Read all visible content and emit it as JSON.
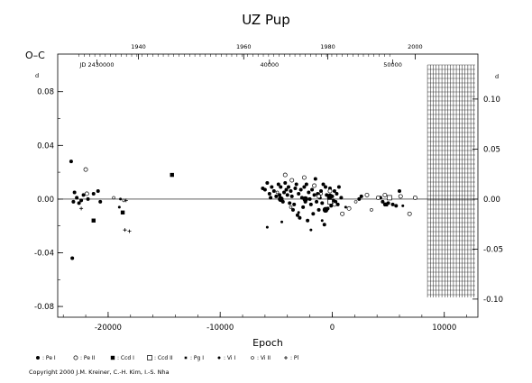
{
  "chart_data": {
    "type": "scatter",
    "title": "UZ Pup",
    "xlabel": "Epoch",
    "ylabel": "O–C",
    "y_unit_mark": "d",
    "xlim": [
      -24500,
      13000
    ],
    "ylim": [
      -0.088,
      0.108
    ],
    "x_ticks": [
      -20000,
      -10000,
      0,
      10000
    ],
    "x_tick_labels": [
      "-20000",
      "-10000",
      "0",
      "10000"
    ],
    "y_ticks_left": [
      -0.08,
      -0.04,
      0.0,
      0.04,
      0.08
    ],
    "y_tick_labels_left": [
      "-0.08",
      "-0.04",
      "0.00",
      "0.04",
      "0.08"
    ],
    "y_ticks_right": [
      -0.1,
      -0.05,
      0.0,
      0.05,
      0.1
    ],
    "y_tick_labels_right": [
      "-0.10",
      "-0.05",
      "0.00",
      "0.05",
      "0.10"
    ],
    "top_axis_years": [
      {
        "label": "1940",
        "epoch": -17300
      },
      {
        "label": "1960",
        "epoch": -7900
      },
      {
        "label": "1980",
        "epoch": -400
      },
      {
        "label": "2000",
        "epoch": 7400
      }
    ],
    "top_axis_jd": [
      {
        "label": "JD 2430000",
        "epoch": -21000
      },
      {
        "label": "40000",
        "epoch": -5600
      },
      {
        "label": "50000",
        "epoch": 5400
      }
    ],
    "zero_line": 0.0,
    "future_shade_from_epoch": 8500,
    "grid": false,
    "legend": [
      {
        "label": ": Pe I",
        "symbol": "filled-circle"
      },
      {
        "label": ": Pe II",
        "symbol": "open-circle"
      },
      {
        "label": ": Ccd I",
        "symbol": "filled-square"
      },
      {
        "label": ": Ccd II",
        "symbol": "open-square"
      },
      {
        "label": ": Pg I",
        "symbol": "small-filled-square"
      },
      {
        "label": ": Vi I",
        "symbol": "small-filled-circle"
      },
      {
        "label": ": Vi II",
        "symbol": "small-open-circle"
      },
      {
        "label": ": Pl",
        "symbol": "plus"
      }
    ],
    "series": [
      {
        "name": "Pe I",
        "symbol": "filled-circle",
        "points": [
          [
            -23300,
            0.028
          ],
          [
            -23200,
            -0.044
          ],
          [
            -23100,
            -0.002
          ],
          [
            -23000,
            0.005
          ],
          [
            -22800,
            0.001
          ],
          [
            -22600,
            -0.003
          ],
          [
            -22400,
            -0.001
          ],
          [
            -22200,
            0.003
          ],
          [
            -21800,
            0.0
          ],
          [
            -21300,
            0.004
          ],
          [
            -20900,
            0.006
          ],
          [
            -20700,
            -0.002
          ],
          [
            -6200,
            0.008
          ],
          [
            -6000,
            0.007
          ],
          [
            -5800,
            0.012
          ],
          [
            -5600,
            0.004
          ],
          [
            -5500,
            0.001
          ],
          [
            -5400,
            0.009
          ],
          [
            -5200,
            0.006
          ],
          [
            -5000,
            0.002
          ],
          [
            -4800,
            0.011
          ],
          [
            -4700,
            0.003
          ],
          [
            -4600,
            0.009
          ],
          [
            -4500,
            0.0
          ],
          [
            -4400,
            -0.002
          ],
          [
            -4300,
            0.005
          ],
          [
            -4200,
            0.012
          ],
          [
            -4100,
            0.007
          ],
          [
            -4000,
            0.003
          ],
          [
            -3900,
            0.009
          ],
          [
            -3800,
            -0.003
          ],
          [
            -3700,
            0.006
          ],
          [
            -3600,
            0.002
          ],
          [
            -3500,
            -0.008
          ],
          [
            -3400,
            -0.004
          ],
          [
            -3300,
            0.008
          ],
          [
            -3200,
            0.011
          ],
          [
            -3100,
            -0.012
          ],
          [
            -3000,
            0.004
          ],
          [
            -2900,
            -0.014
          ],
          [
            -2800,
            0.007
          ],
          [
            -2700,
            0.001
          ],
          [
            -2600,
            -0.006
          ],
          [
            -2500,
            0.009
          ],
          [
            -2400,
            -0.002
          ],
          [
            -2300,
            0.011
          ],
          [
            -2200,
            -0.016
          ],
          [
            -2100,
            0.005
          ],
          [
            -2000,
            0.0
          ],
          [
            -1900,
            -0.004
          ],
          [
            -1800,
            0.007
          ],
          [
            -1700,
            -0.011
          ],
          [
            -1600,
            0.003
          ],
          [
            -1500,
            0.015
          ],
          [
            -1400,
            -0.002
          ],
          [
            -1300,
            0.004
          ],
          [
            -1200,
            -0.008
          ],
          [
            -1100,
            0.001
          ],
          [
            -1000,
            0.006
          ],
          [
            -900,
            -0.003
          ],
          [
            -800,
            0.011
          ],
          [
            -700,
            -0.019
          ],
          [
            -600,
            0.009
          ],
          [
            -500,
            0.003
          ],
          [
            -400,
            -0.007
          ],
          [
            -300,
            0.001
          ],
          [
            -200,
            0.008
          ],
          [
            -100,
            -0.005
          ],
          [
            0,
            0.002
          ],
          [
            100,
            -0.001
          ],
          [
            200,
            0.006
          ],
          [
            300,
            -0.002
          ],
          [
            400,
            0.004
          ],
          [
            500,
            -0.004
          ],
          [
            600,
            0.009
          ],
          [
            800,
            0.001
          ],
          [
            2400,
            0.0
          ],
          [
            2600,
            0.002
          ],
          [
            4300,
            0.001
          ],
          [
            4500,
            -0.002
          ],
          [
            4700,
            -0.004
          ],
          [
            5000,
            -0.003
          ],
          [
            5400,
            -0.004
          ],
          [
            5700,
            -0.005
          ],
          [
            6000,
            0.006
          ]
        ]
      },
      {
        "name": "Pe I (large)",
        "symbol": "filled-circle-large",
        "points": [
          [
            -4600,
            0.0
          ],
          [
            -2400,
            0.0
          ],
          [
            -600,
            -0.008
          ],
          [
            -200,
            0.002
          ]
        ]
      },
      {
        "name": "Pe II",
        "symbol": "open-circle",
        "points": [
          [
            -22000,
            0.022
          ],
          [
            -21900,
            0.004
          ],
          [
            -4200,
            0.018
          ],
          [
            -3600,
            0.014
          ],
          [
            -2500,
            0.016
          ],
          [
            -1600,
            0.01
          ],
          [
            -1200,
            0.002
          ],
          [
            -200,
            0.006
          ],
          [
            200,
            -0.004
          ],
          [
            900,
            -0.011
          ],
          [
            1500,
            -0.007
          ],
          [
            3100,
            0.003
          ],
          [
            4100,
            0.001
          ],
          [
            4700,
            0.003
          ],
          [
            6100,
            0.002
          ],
          [
            6900,
            -0.011
          ],
          [
            7400,
            0.001
          ]
        ]
      },
      {
        "name": "Ccd I",
        "symbol": "filled-square",
        "points": [
          [
            -21300,
            -0.016
          ],
          [
            -18700,
            -0.01
          ],
          [
            -14300,
            0.018
          ],
          [
            4800,
            -0.004
          ]
        ]
      },
      {
        "name": "Ccd II",
        "symbol": "open-square",
        "points": [
          [
            -200,
            -0.002
          ],
          [
            5100,
            0.001
          ]
        ]
      },
      {
        "name": "Vi I",
        "symbol": "small-filled-circle",
        "points": [
          [
            -19000,
            -0.006
          ],
          [
            -18900,
            0.0
          ],
          [
            -5800,
            -0.021
          ],
          [
            -4500,
            -0.017
          ],
          [
            -3000,
            -0.01
          ],
          [
            -1900,
            -0.023
          ],
          [
            -900,
            -0.016
          ],
          [
            1200,
            -0.006
          ],
          [
            6300,
            -0.005
          ]
        ]
      },
      {
        "name": "Vi II",
        "symbol": "small-open-circle",
        "points": [
          [
            -19500,
            0.001
          ],
          [
            -18600,
            -0.001
          ],
          [
            -4900,
            0.005
          ],
          [
            -3700,
            -0.006
          ],
          [
            -1000,
            0.004
          ],
          [
            2100,
            -0.002
          ],
          [
            3500,
            -0.008
          ]
        ]
      },
      {
        "name": "Pl",
        "symbol": "plus",
        "points": [
          [
            -22400,
            -0.007
          ],
          [
            -18500,
            -0.023
          ],
          [
            -18100,
            -0.024
          ],
          [
            -18400,
            -0.001
          ]
        ]
      }
    ]
  },
  "copyright": "Copyright 2000 J.M. Kreiner, C.-H. Kim, I.-S. Nha"
}
